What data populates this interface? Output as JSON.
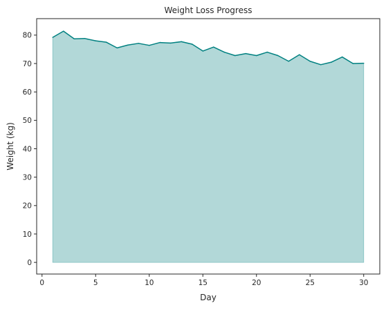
{
  "chart_data": {
    "type": "area",
    "title": "Weight Loss Progress",
    "xlabel": "Day",
    "ylabel": "Weight (kg)",
    "xlim": [
      -0.5,
      31.5
    ],
    "ylim": [
      -4.1,
      85.8
    ],
    "xticks": [
      0,
      5,
      10,
      15,
      20,
      25,
      30
    ],
    "yticks": [
      0,
      10,
      20,
      30,
      40,
      50,
      60,
      70,
      80
    ],
    "grid": false,
    "legend": "none",
    "x": [
      1,
      2,
      3,
      4,
      5,
      6,
      7,
      8,
      9,
      10,
      11,
      12,
      13,
      14,
      15,
      16,
      17,
      18,
      19,
      20,
      21,
      22,
      23,
      24,
      25,
      26,
      27,
      28,
      29,
      30
    ],
    "series": [
      {
        "values": [
          79.2,
          81.4,
          78.7,
          78.8,
          78.0,
          77.5,
          75.5,
          76.5,
          77.1,
          76.4,
          77.4,
          77.2,
          77.7,
          76.8,
          74.4,
          75.8,
          74.0,
          72.8,
          73.5,
          72.8,
          74.0,
          72.8,
          70.8,
          73.1,
          70.8,
          69.6,
          70.5,
          72.3,
          70.0,
          70.1
        ]
      }
    ],
    "colors": {
      "line": "#008080",
      "fill": "#b2d8d8",
      "axes": "#262626",
      "background": "#ffffff"
    }
  }
}
